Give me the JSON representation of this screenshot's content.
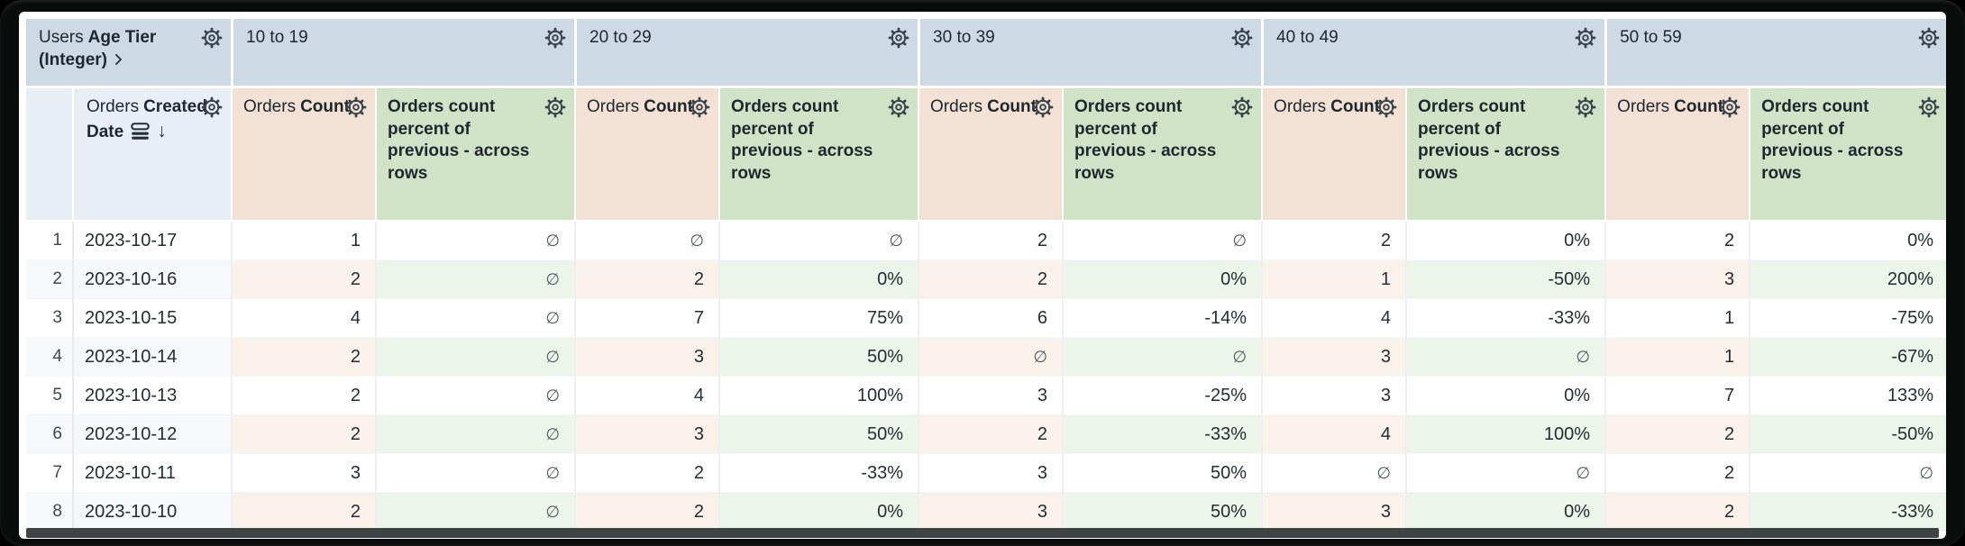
{
  "header": {
    "corner": {
      "view": "Users",
      "field": "Age Tier (Integer)"
    },
    "row_dimension": {
      "view": "Orders",
      "field": "Created Date",
      "sort_arrow": "↓",
      "sort_direction": "desc"
    },
    "pivot_values": [
      "10 to 19",
      "20 to 29",
      "30 to 39",
      "40 to 49",
      "50 to 59"
    ],
    "measures": [
      {
        "view": "Orders",
        "field": "Count"
      },
      {
        "view": "",
        "field": "Orders count percent of previous - across rows"
      }
    ]
  },
  "null_symbol": "∅",
  "rows": [
    {
      "index": 1,
      "date": "2023-10-17",
      "values": [
        "1",
        "∅",
        "∅",
        "∅",
        "2",
        "∅",
        "2",
        "0%",
        "2",
        "0%"
      ]
    },
    {
      "index": 2,
      "date": "2023-10-16",
      "values": [
        "2",
        "∅",
        "2",
        "0%",
        "2",
        "0%",
        "1",
        "-50%",
        "3",
        "200%"
      ]
    },
    {
      "index": 3,
      "date": "2023-10-15",
      "values": [
        "4",
        "∅",
        "7",
        "75%",
        "6",
        "-14%",
        "4",
        "-33%",
        "1",
        "-75%"
      ]
    },
    {
      "index": 4,
      "date": "2023-10-14",
      "values": [
        "2",
        "∅",
        "3",
        "50%",
        "∅",
        "∅",
        "3",
        "∅",
        "1",
        "-67%"
      ]
    },
    {
      "index": 5,
      "date": "2023-10-13",
      "values": [
        "2",
        "∅",
        "4",
        "100%",
        "3",
        "-25%",
        "3",
        "0%",
        "7",
        "133%"
      ]
    },
    {
      "index": 6,
      "date": "2023-10-12",
      "values": [
        "2",
        "∅",
        "3",
        "50%",
        "2",
        "-33%",
        "4",
        "100%",
        "2",
        "-50%"
      ]
    },
    {
      "index": 7,
      "date": "2023-10-11",
      "values": [
        "3",
        "∅",
        "2",
        "-33%",
        "3",
        "50%",
        "∅",
        "∅",
        "2",
        "∅"
      ]
    },
    {
      "index": 8,
      "date": "2023-10-10",
      "values": [
        "2",
        "∅",
        "2",
        "0%",
        "3",
        "50%",
        "3",
        "0%",
        "2",
        "-33%"
      ]
    }
  ],
  "colors": {
    "pivot_header_bg": "#cdd9e5",
    "dimension_header_bg": "#e9eef5",
    "count_header_bg": "#f2e1d4",
    "percent_header_bg": "#d0e3c7",
    "stripe_base": "#f6f8fb",
    "stripe_count": "#faf1ea",
    "stripe_percent": "#edf4e9",
    "scrollbar": "#3e4343",
    "frame": "#0a0b0b"
  }
}
